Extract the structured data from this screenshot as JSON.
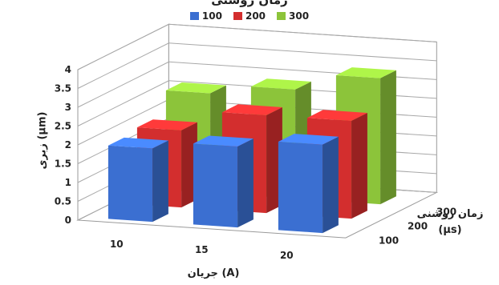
{
  "chart_data": {
    "type": "bar",
    "title": "زمان روشنی",
    "categories": [
      "10",
      "15",
      "20"
    ],
    "depth_categories": [
      "100",
      "200",
      "300"
    ],
    "series": [
      {
        "name": "100",
        "color": "#3b6fd1",
        "values": [
          1.95,
          2.15,
          2.35
        ]
      },
      {
        "name": "200",
        "color": "#d32e2e",
        "values": [
          2.05,
          2.6,
          2.6
        ]
      },
      {
        "name": "300",
        "color": "#8cc43a",
        "values": [
          2.65,
          2.9,
          3.35
        ]
      }
    ],
    "ylim": [
      0,
      4
    ],
    "yticks": [
      "0",
      "0.5",
      "1",
      "1.5",
      "2",
      "2.5",
      "3",
      "3.5",
      "4"
    ],
    "xlabel": "جریان (A)",
    "ylabel": "زبری (µm)",
    "zlabel": "زمان روشنی (µs)",
    "grid": true,
    "legend": "top-center"
  }
}
